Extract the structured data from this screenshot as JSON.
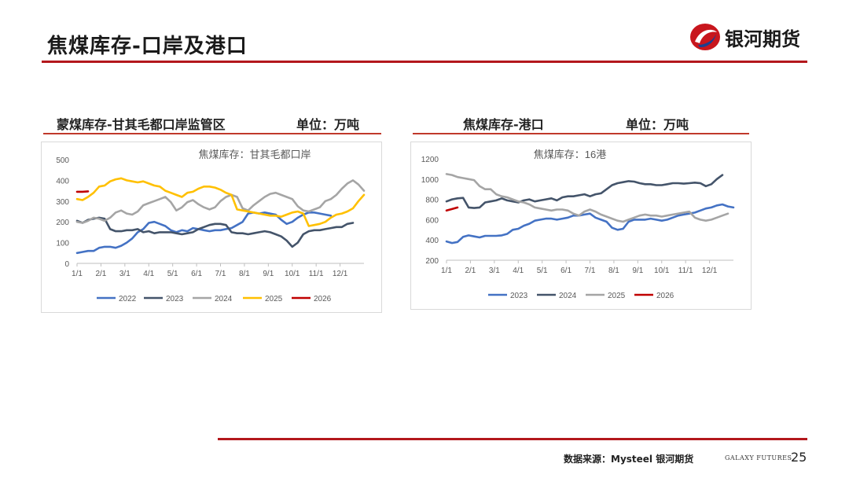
{
  "page": {
    "title": "焦煤库存-口岸及港口",
    "logo_text": "银河期货",
    "source": "数据来源：Mysteel 银河期货",
    "galaxy": "GALAXY FUTURES",
    "page_number": "25"
  },
  "panels": [
    {
      "heading": "蒙煤库存-甘其毛都口岸监管区",
      "unit": "单位：万吨"
    },
    {
      "heading": "焦煤库存-港口",
      "unit": "单位：万吨"
    }
  ],
  "colors": {
    "brand_red": "#b3171c",
    "2022": "#4472c4",
    "2023": "#44546a",
    "2024": "#a5a5a5",
    "2025": "#ffc000",
    "2026": "#c00000"
  },
  "chart_data": [
    {
      "type": "line",
      "title": "焦煤库存：甘其毛都口岸",
      "xlabel": "",
      "ylabel": "",
      "ylim": [
        0,
        500
      ],
      "yticks": [
        "0",
        "100",
        "200",
        "300",
        "400",
        "500"
      ],
      "xticks": [
        "1/1",
        "2/1",
        "3/1",
        "4/1",
        "5/1",
        "6/1",
        "7/1",
        "8/1",
        "9/1",
        "10/1",
        "11/1",
        "12/1"
      ],
      "x_unit": "week",
      "grid": false,
      "legend": "bottom",
      "series": [
        {
          "name": "2022",
          "color": "#4472c4",
          "values": [
            50,
            55,
            60,
            60,
            75,
            80,
            80,
            75,
            85,
            100,
            120,
            150,
            165,
            195,
            200,
            190,
            180,
            160,
            150,
            160,
            155,
            170,
            165,
            160,
            155,
            160,
            160,
            165,
            170,
            185,
            200,
            240,
            245,
            240,
            245,
            240,
            235,
            210,
            190,
            200,
            220,
            235,
            245,
            245,
            240,
            235,
            230
          ]
        },
        {
          "name": "2023",
          "color": "#44546a",
          "values": [
            205,
            195,
            210,
            215,
            220,
            215,
            165,
            155,
            155,
            160,
            160,
            165,
            150,
            155,
            145,
            150,
            150,
            150,
            145,
            140,
            145,
            150,
            165,
            175,
            185,
            190,
            190,
            185,
            150,
            145,
            145,
            140,
            145,
            150,
            155,
            150,
            140,
            130,
            110,
            80,
            100,
            140,
            155,
            160,
            160,
            165,
            170,
            175,
            175,
            190,
            195
          ]
        },
        {
          "name": "2024",
          "color": "#a5a5a5",
          "values": [
            200,
            195,
            205,
            220,
            215,
            205,
            220,
            245,
            255,
            240,
            235,
            250,
            280,
            290,
            300,
            310,
            320,
            295,
            255,
            270,
            295,
            305,
            285,
            270,
            260,
            270,
            300,
            320,
            330,
            320,
            265,
            255,
            280,
            300,
            320,
            335,
            340,
            330,
            320,
            310,
            275,
            255,
            250,
            260,
            270,
            300,
            310,
            330,
            360,
            385,
            400,
            380,
            350
          ]
        },
        {
          "name": "2025",
          "color": "#ffc000",
          "values": [
            310,
            305,
            320,
            340,
            370,
            375,
            395,
            405,
            410,
            400,
            395,
            390,
            395,
            385,
            375,
            370,
            350,
            340,
            330,
            320,
            340,
            345,
            360,
            370,
            370,
            365,
            355,
            340,
            330,
            260,
            255,
            250,
            245,
            240,
            235,
            230,
            230,
            225,
            235,
            245,
            250,
            240,
            180,
            185,
            190,
            200,
            220,
            235,
            240,
            250,
            265,
            300,
            330
          ]
        },
        {
          "name": "2026",
          "color": "#c00000",
          "values": [
            345,
            345,
            347
          ]
        }
      ]
    },
    {
      "type": "line",
      "title": "焦煤库存：16港",
      "xlabel": "",
      "ylabel": "",
      "ylim": [
        200,
        1200
      ],
      "yticks": [
        "200",
        "400",
        "600",
        "800",
        "1000",
        "1200"
      ],
      "xticks": [
        "1/1",
        "2/1",
        "3/1",
        "4/1",
        "5/1",
        "6/1",
        "7/1",
        "8/1",
        "9/1",
        "10/1",
        "11/1",
        "12/1"
      ],
      "x_unit": "week",
      "grid": false,
      "legend": "bottom",
      "series": [
        {
          "name": "2023",
          "color": "#4472c4",
          "values": [
            385,
            370,
            380,
            430,
            445,
            435,
            425,
            440,
            440,
            440,
            445,
            460,
            500,
            510,
            540,
            560,
            590,
            600,
            610,
            610,
            600,
            610,
            620,
            640,
            640,
            650,
            660,
            620,
            600,
            580,
            520,
            500,
            510,
            580,
            600,
            600,
            600,
            610,
            600,
            590,
            600,
            620,
            640,
            650,
            660,
            670,
            690,
            710,
            720,
            740,
            750,
            730,
            720
          ]
        },
        {
          "name": "2024",
          "color": "#44546a",
          "values": [
            780,
            800,
            810,
            815,
            720,
            715,
            720,
            770,
            780,
            790,
            810,
            790,
            780,
            770,
            790,
            800,
            780,
            790,
            800,
            810,
            790,
            820,
            830,
            830,
            840,
            850,
            830,
            850,
            860,
            900,
            940,
            960,
            970,
            980,
            975,
            960,
            950,
            950,
            940,
            940,
            950,
            960,
            960,
            955,
            960,
            965,
            960,
            930,
            950,
            1000,
            1040
          ]
        },
        {
          "name": "2025",
          "color": "#a5a5a5",
          "values": [
            1050,
            1040,
            1020,
            1010,
            1000,
            990,
            930,
            900,
            900,
            850,
            830,
            820,
            800,
            780,
            770,
            750,
            720,
            710,
            700,
            690,
            700,
            700,
            690,
            660,
            640,
            680,
            700,
            680,
            650,
            630,
            610,
            590,
            580,
            600,
            620,
            640,
            650,
            640,
            640,
            630,
            640,
            650,
            660,
            670,
            680,
            620,
            600,
            590,
            600,
            620,
            640,
            660
          ]
        },
        {
          "name": "2026",
          "color": "#c00000",
          "values": [
            690,
            705,
            720
          ]
        }
      ]
    }
  ]
}
